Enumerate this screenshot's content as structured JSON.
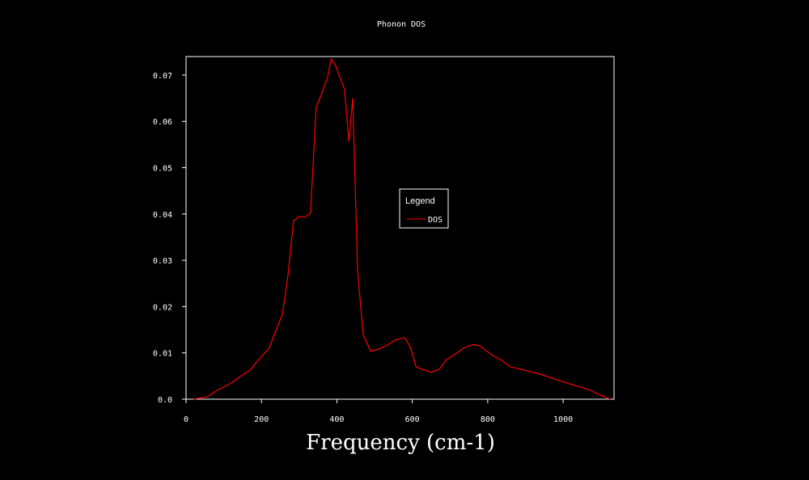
{
  "chart_data": {
    "type": "line",
    "title": "Phonon DOS",
    "xlabel": "Frequency (cm-1)",
    "ylabel": "",
    "xlim": [
      0,
      1135
    ],
    "ylim": [
      0,
      0.074
    ],
    "xticks": [
      0,
      200,
      400,
      600,
      800,
      1000
    ],
    "xtick_labels": [
      "0",
      "200",
      "400",
      "600",
      "800",
      "1000"
    ],
    "yticks": [
      0,
      0.01,
      0.02,
      0.03,
      0.04,
      0.05,
      0.06,
      0.07
    ],
    "ytick_labels": [
      "0.0",
      "0.01",
      "0.02",
      "0.03",
      "0.04",
      "0.05",
      "0.06",
      "0.07"
    ],
    "grid": false,
    "legend": {
      "title": "Legend",
      "position": "center-right"
    },
    "series": [
      {
        "name": "DOS",
        "color": "#ff0000",
        "x": [
          20,
          55,
          85,
          120,
          145,
          170,
          195,
          220,
          240,
          255,
          270,
          285,
          300,
          315,
          330,
          345,
          362,
          375,
          385,
          397,
          408,
          420,
          432,
          442,
          455,
          470,
          490,
          510,
          530,
          555,
          580,
          595,
          610,
          625,
          650,
          672,
          690,
          710,
          735,
          760,
          780,
          795,
          812,
          835,
          860,
          885,
          910,
          935,
          955,
          972,
          990,
          1010,
          1030,
          1050,
          1070,
          1090,
          1110,
          1125
        ],
        "y": [
          0.0,
          0.0005,
          0.002,
          0.0035,
          0.005,
          0.0063,
          0.0088,
          0.011,
          0.0152,
          0.0182,
          0.0265,
          0.0385,
          0.0395,
          0.0393,
          0.0402,
          0.063,
          0.0665,
          0.0695,
          0.0735,
          0.072,
          0.0695,
          0.067,
          0.0557,
          0.065,
          0.0275,
          0.0138,
          0.0103,
          0.0108,
          0.0115,
          0.0128,
          0.0133,
          0.0112,
          0.007,
          0.0065,
          0.0058,
          0.0065,
          0.0085,
          0.0095,
          0.011,
          0.0118,
          0.0115,
          0.0105,
          0.0095,
          0.0085,
          0.007,
          0.0065,
          0.006,
          0.0055,
          0.005,
          0.0045,
          0.004,
          0.0035,
          0.003,
          0.0025,
          0.002,
          0.0012,
          0.0005,
          0.0
        ]
      }
    ]
  }
}
